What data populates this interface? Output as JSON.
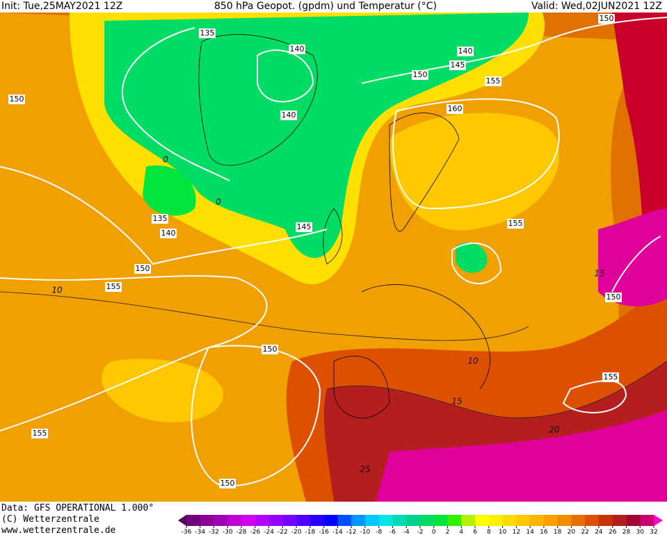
{
  "header": {
    "init": "Init: Tue,25MAY2021 12Z",
    "title": "850 hPa Geopot. (gpdm) und Temperatur (°C)",
    "valid": "Valid: Wed,02JUN2021 12Z"
  },
  "map": {
    "geopotential_labels": [
      "135",
      "140",
      "140",
      "145",
      "150",
      "155",
      "150",
      "150",
      "140",
      "160",
      "135",
      "140",
      "145",
      "155",
      "150",
      "155",
      "150",
      "150",
      "155",
      "155",
      "150"
    ],
    "temperature_labels": [
      "10",
      "0",
      "0",
      "10",
      "15",
      "20",
      "15",
      "25"
    ]
  },
  "footer": {
    "data": "Data: GFS OPERATIONAL 1.000°",
    "copyright": "(C) Wetterzentrale",
    "url": "www.wetterzentrale.de"
  },
  "legend": {
    "ticks": [
      -36,
      -34,
      -32,
      -30,
      -28,
      -26,
      -24,
      -22,
      -20,
      -18,
      -16,
      -14,
      -12,
      -10,
      -8,
      -6,
      -4,
      -2,
      0,
      2,
      4,
      6,
      8,
      10,
      12,
      14,
      16,
      18,
      20,
      22,
      24,
      26,
      28,
      30,
      32
    ],
    "colors": [
      "#5a005a",
      "#6e0078",
      "#8c0096",
      "#a000b4",
      "#be00d2",
      "#d200f0",
      "#b400ff",
      "#9600ff",
      "#7800ff",
      "#5000ff",
      "#2800ff",
      "#0000ff",
      "#0050ff",
      "#0096ff",
      "#00c8ff",
      "#00e6e6",
      "#00dcb4",
      "#00d28c",
      "#00dc64",
      "#00e63c",
      "#32f000",
      "#b4f000",
      "#ffff00",
      "#fff000",
      "#ffdc00",
      "#ffc800",
      "#ffb400",
      "#ffa000",
      "#f08c00",
      "#e66e00",
      "#dc5000",
      "#c83200",
      "#b41e1e",
      "#a00a32",
      "#c8006e",
      "#ff00c8"
    ]
  }
}
